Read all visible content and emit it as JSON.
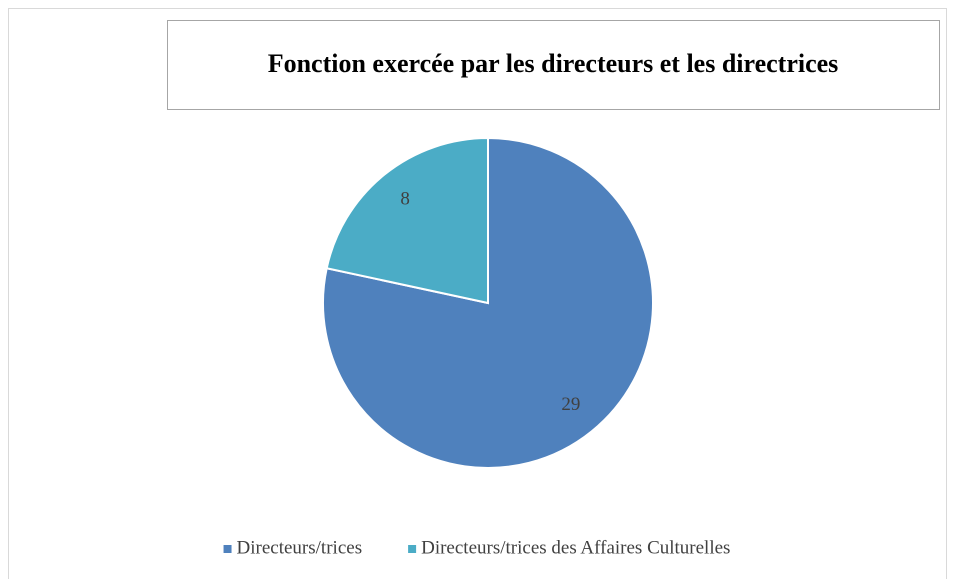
{
  "chart_data": {
    "type": "pie",
    "title": "Fonction exercée par les directeurs et les directrices",
    "categories": [
      "Directeurs/trices",
      "Directeurs/trices des Affaires Culturelles"
    ],
    "values": [
      29,
      8
    ],
    "colors": [
      "#4f81bd",
      "#4bacc6"
    ],
    "legend": "bottom"
  }
}
